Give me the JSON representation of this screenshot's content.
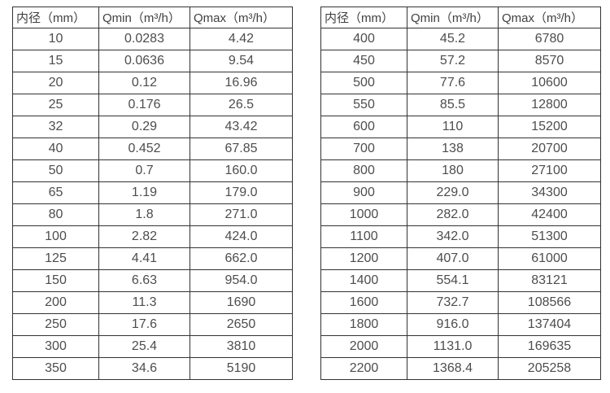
{
  "page": {
    "background": "#ffffff"
  },
  "styles": {
    "border_color": "#333333",
    "text_color": "#4d4d4d",
    "header_text_color": "#404040"
  },
  "chart_data": [
    {
      "type": "table",
      "headers": [
        "内径（mm）",
        "Qmin（m³/h）",
        "Qmax（m³/h）"
      ],
      "rows": [
        [
          "10",
          "0.0283",
          "4.42"
        ],
        [
          "15",
          "0.0636",
          "9.54"
        ],
        [
          "20",
          "0.12",
          "16.96"
        ],
        [
          "25",
          "0.176",
          "26.5"
        ],
        [
          "32",
          "0.29",
          "43.42"
        ],
        [
          "40",
          "0.452",
          "67.85"
        ],
        [
          "50",
          "0.7",
          "160.0"
        ],
        [
          "65",
          "1.19",
          "179.0"
        ],
        [
          "80",
          "1.8",
          "271.0"
        ],
        [
          "100",
          "2.82",
          "424.0"
        ],
        [
          "125",
          "4.41",
          "662.0"
        ],
        [
          "150",
          "6.63",
          "954.0"
        ],
        [
          "200",
          "11.3",
          "1690"
        ],
        [
          "250",
          "17.6",
          "2650"
        ],
        [
          "300",
          "25.4",
          "3810"
        ],
        [
          "350",
          "34.6",
          "5190"
        ]
      ]
    },
    {
      "type": "table",
      "headers": [
        "内径（mm）",
        "Qmin（m³/h）",
        "Qmax（m³/h）"
      ],
      "rows": [
        [
          "400",
          "45.2",
          "6780"
        ],
        [
          "450",
          "57.2",
          "8570"
        ],
        [
          "500",
          "77.6",
          "10600"
        ],
        [
          "550",
          "85.5",
          "12800"
        ],
        [
          "600",
          "110",
          "15200"
        ],
        [
          "700",
          "138",
          "20700"
        ],
        [
          "800",
          "180",
          "27100"
        ],
        [
          "900",
          "229.0",
          "34300"
        ],
        [
          "1000",
          "282.0",
          "42400"
        ],
        [
          "1100",
          "342.0",
          "51300"
        ],
        [
          "1200",
          "407.0",
          "61000"
        ],
        [
          "1400",
          "554.1",
          "83121"
        ],
        [
          "1600",
          "732.7",
          "108566"
        ],
        [
          "1800",
          "916.0",
          "137404"
        ],
        [
          "2000",
          "1131.0",
          "169635"
        ],
        [
          "2200",
          "1368.4",
          "205258"
        ]
      ]
    }
  ]
}
